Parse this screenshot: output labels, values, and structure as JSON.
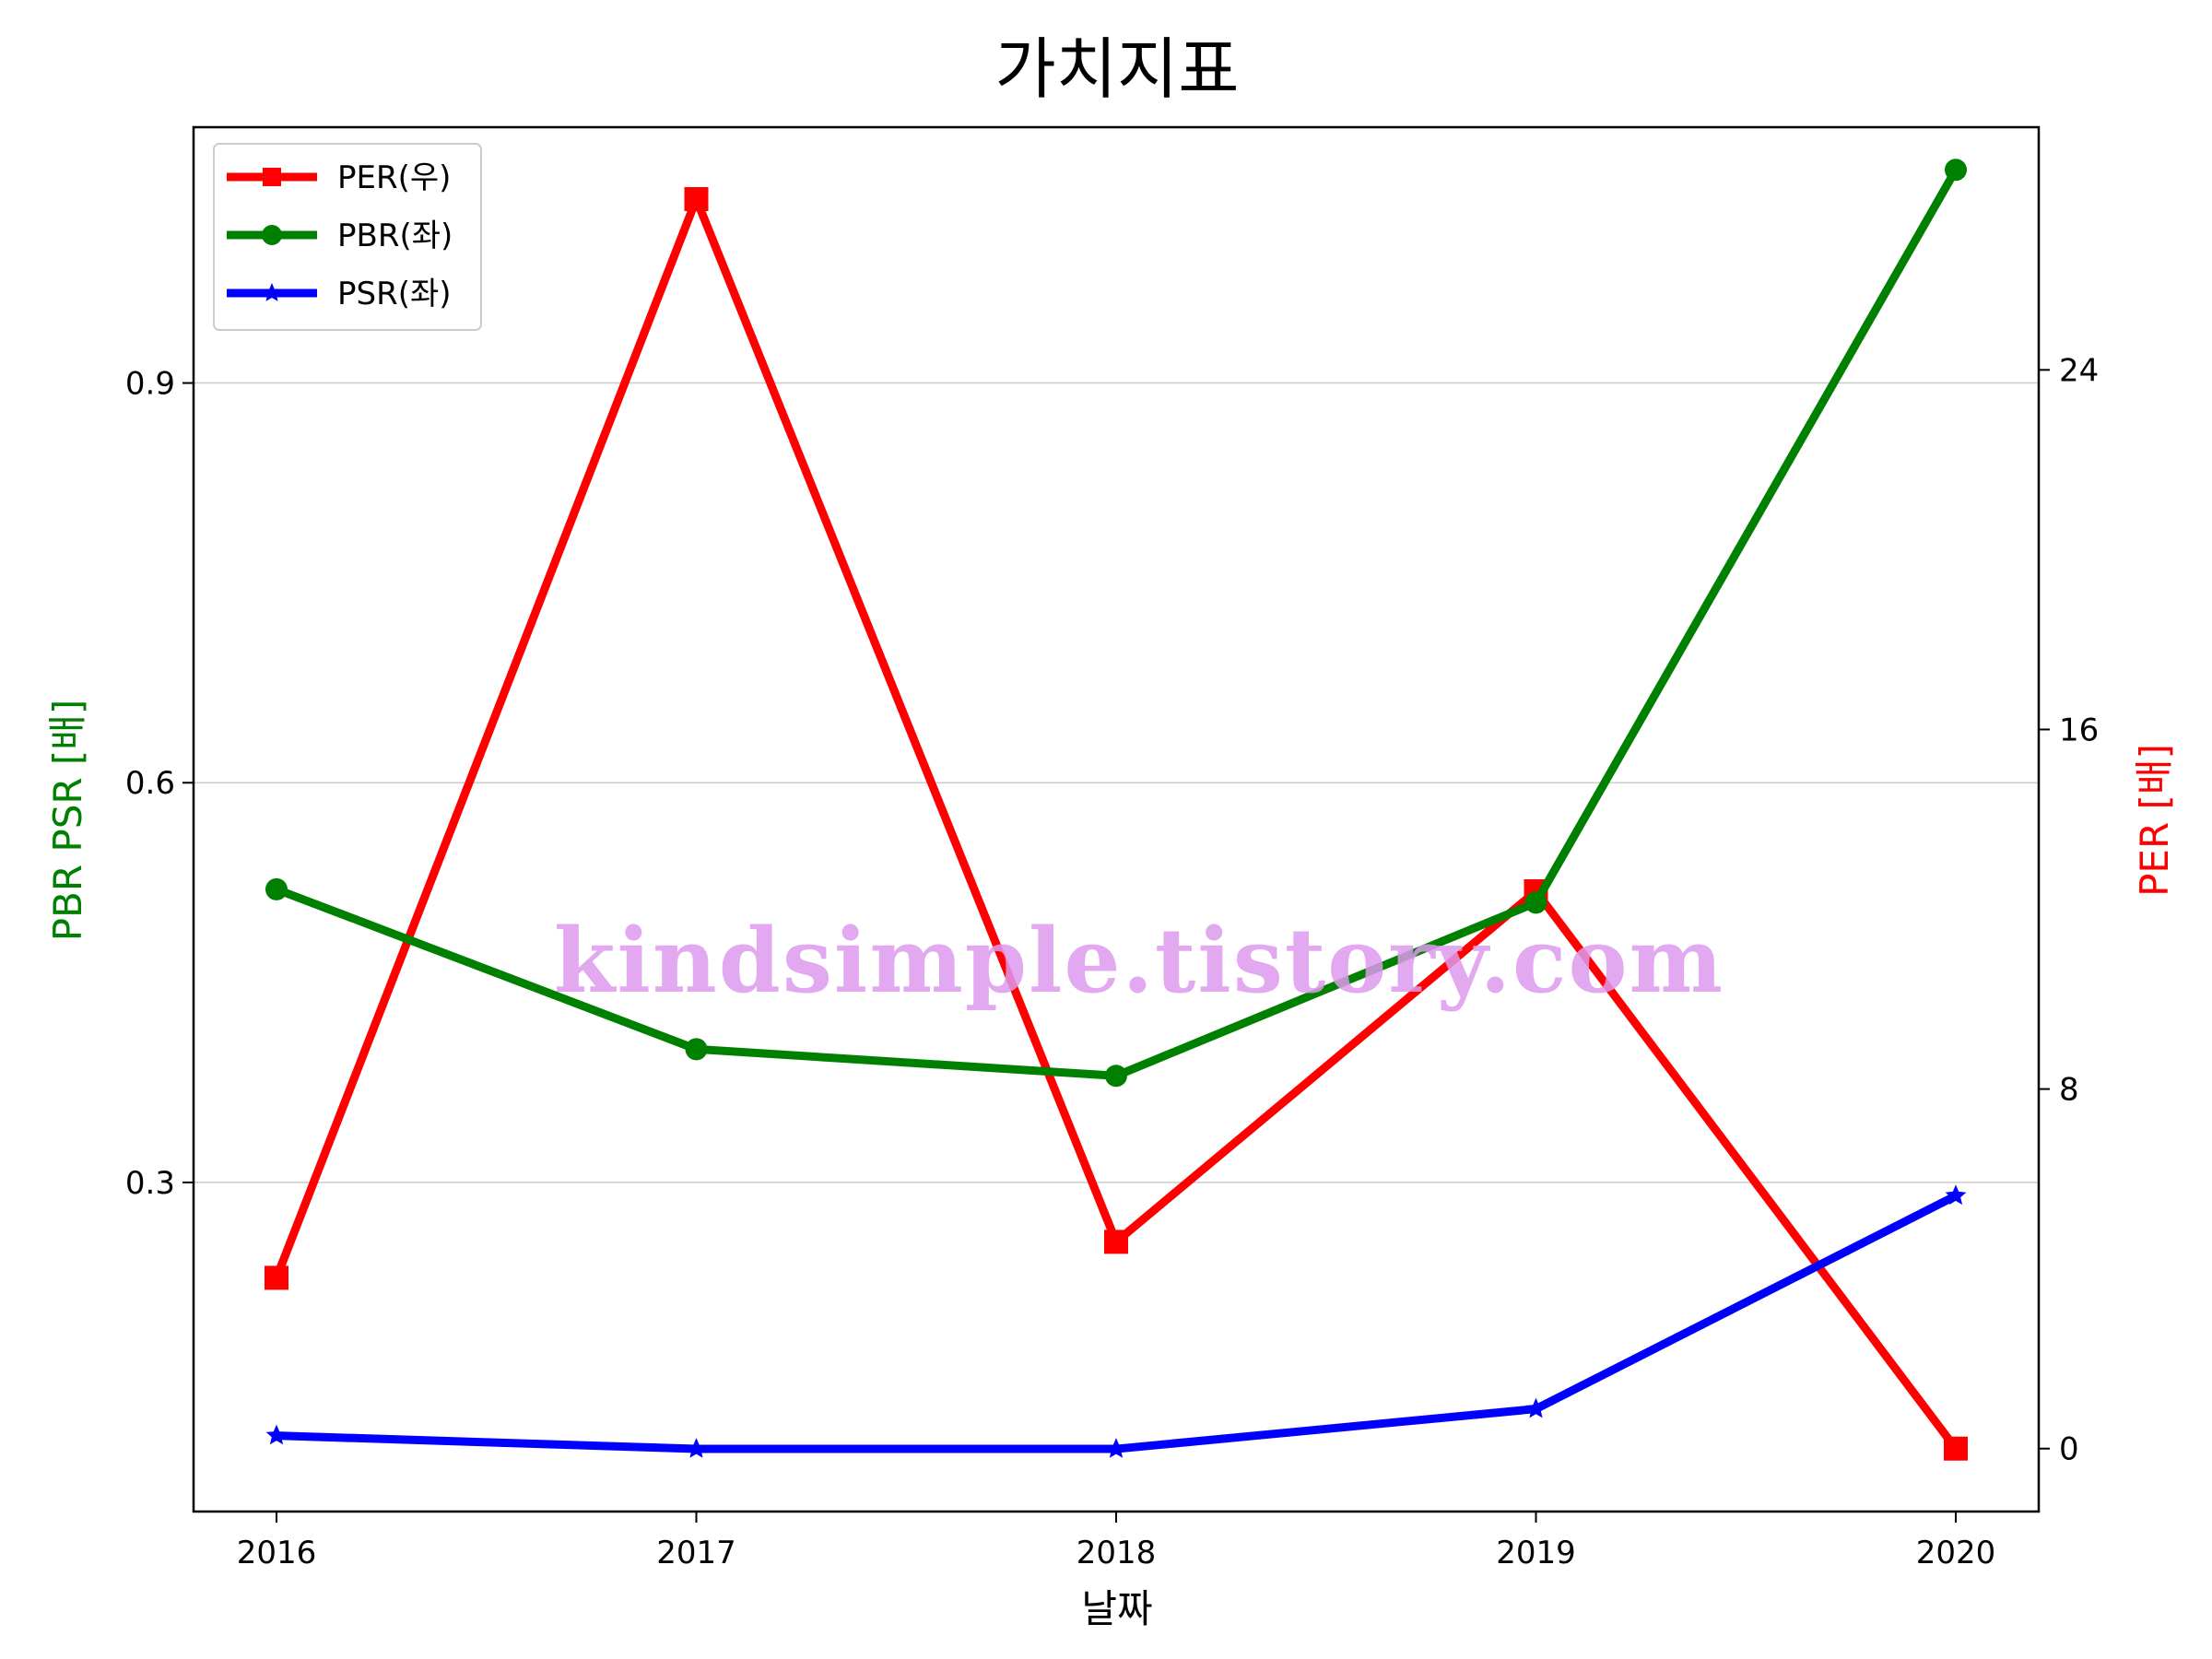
{
  "chart_data": {
    "type": "line",
    "title": "가치지표",
    "xlabel": "날짜",
    "ylabel_left": "PBR PSR [배]",
    "ylabel_right": "PER [배]",
    "categories": [
      "2016",
      "2017",
      "2018",
      "2019",
      "2020"
    ],
    "left_axis": {
      "ylim": [
        0.053,
        1.092
      ],
      "ticks": [
        0.3,
        0.6,
        0.9
      ],
      "tick_labels": [
        "0.3",
        "0.6",
        "0.9"
      ],
      "color": "#008000"
    },
    "right_axis": {
      "ylim": [
        -1.4,
        29.4
      ],
      "ticks": [
        0,
        8,
        16,
        24
      ],
      "tick_labels": [
        "0",
        "8",
        "16",
        "24"
      ],
      "color": "#ff0000"
    },
    "grid": "horizontal, left axis",
    "legend_position": "upper-left",
    "series": [
      {
        "name": "PER(우)",
        "axis": "right",
        "color": "#ff0000",
        "marker": "square",
        "values": [
          3.8,
          27.8,
          4.6,
          12.4,
          0.0
        ]
      },
      {
        "name": "PBR(좌)",
        "axis": "left",
        "color": "#008000",
        "marker": "circle",
        "values": [
          0.52,
          0.4,
          0.38,
          0.51,
          1.06
        ]
      },
      {
        "name": "PSR(좌)",
        "axis": "left",
        "color": "#0000ff",
        "marker": "star",
        "values": [
          0.11,
          0.1,
          0.1,
          0.13,
          0.29
        ]
      }
    ],
    "watermark": "kindsimple.tistory.com"
  }
}
